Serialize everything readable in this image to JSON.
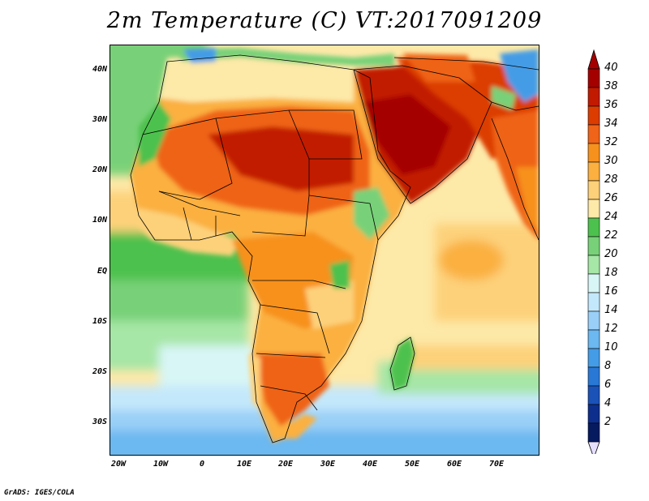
{
  "title": "2m Temperature (C) VT:2017091209",
  "credit": "GrADS: IGES/COLA",
  "map": {
    "region": "Africa and Middle East",
    "variable": "2m Temperature",
    "units": "C",
    "lon_range": [
      -25,
      80
    ],
    "lat_range": [
      -37,
      46
    ],
    "y_ticks": [
      "40N",
      "30N",
      "20N",
      "10N",
      "EQ",
      "10S",
      "20S",
      "30S"
    ],
    "x_ticks": [
      "20W",
      "10W",
      "0",
      "10E",
      "20E",
      "30E",
      "40E",
      "50E",
      "60E",
      "70E"
    ]
  },
  "colorbar": {
    "levels": [
      "40",
      "38",
      "36",
      "34",
      "32",
      "30",
      "28",
      "26",
      "24",
      "22",
      "20",
      "18",
      "16",
      "14",
      "12",
      "10",
      "8",
      "6",
      "4",
      "2"
    ],
    "colors": [
      "#a50000",
      "#c21a00",
      "#dc3c00",
      "#ef6418",
      "#f7911e",
      "#fbb040",
      "#fdd17a",
      "#fde9a8",
      "#4dc14d",
      "#78d178",
      "#a6e6a6",
      "#d8f6f6",
      "#c4e8fb",
      "#9ad0f7",
      "#6cb8f0",
      "#449ce6",
      "#2a78d6",
      "#1a52b8",
      "#0d2e8c",
      "#061a60"
    ],
    "cap_top_color": "#a50000",
    "cap_bottom_color": "#e6e0ff"
  }
}
